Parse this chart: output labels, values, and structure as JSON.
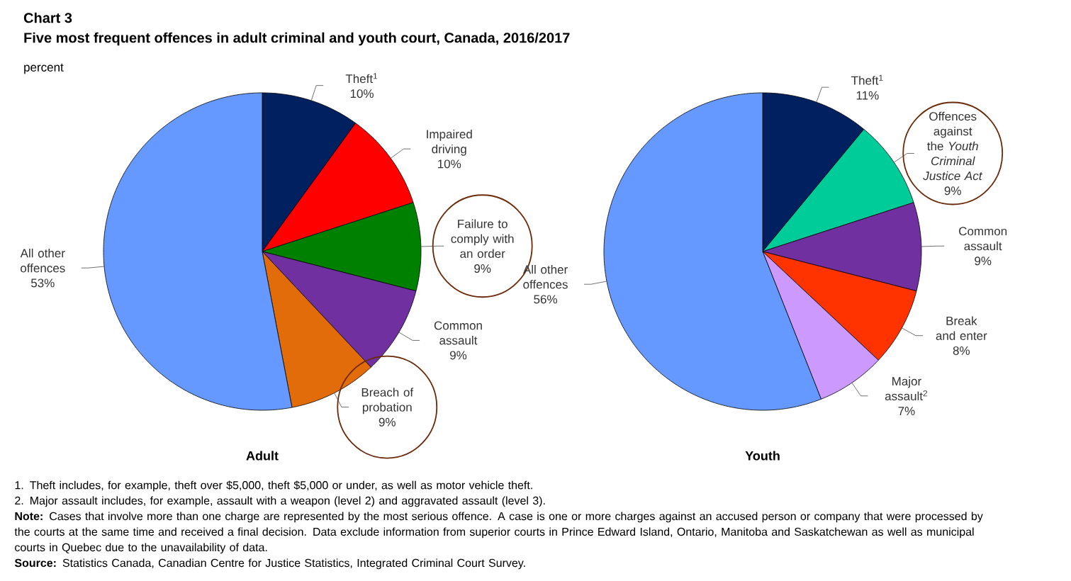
{
  "chart_data": [
    {
      "type": "pie",
      "title": "Chart 3",
      "subtitle": "Five most frequent offences in adult criminal and youth court, Canada, 2016/2017",
      "ylabel": "percent",
      "xlabel": "Adult",
      "categories": [
        "Theft$^{1}$",
        "Impaired driving",
        "Failure to comply with an order",
        "Common assault",
        "Breach of probation",
        "All other offences"
      ],
      "values": [
        10,
        10,
        9,
        9,
        9,
        53
      ],
      "value_labels": [
        "10%",
        "10%",
        "9%",
        "9%",
        "9%",
        "53%"
      ],
      "colors": [
        "#002060",
        "#ff0000",
        "#008000",
        "#7030a0",
        "#e36c0a",
        "#6699ff"
      ],
      "annotations": [
        "1. Theft includes, for example, theft over $5,000, theft $5,000 or under, as well as motor vehicle theft.",
        "2. Major assault includes, for example, assault with a weapon (level 2) and aggravated assault (level 3).",
        "**Note:** Cases that involve more than one charge are represented by the most serious offence. A case is one or more charges against an accused person or company that were processed by the courts at the same time and received a final decision. Data exclude information from superior courts in Prince Edward Island, Ontario, Manitoba and Saskatchewan as well as municipal courts in Quebec due to the unavailability of data.",
        "**Source:** Statistics Canada, Canadian Centre for Justice Statistics, Integrated Criminal Court Survey."
      ]
    },
    {
      "type": "pie",
      "xlabel": "Youth",
      "categories": [
        "Theft$^{1}$",
        "Offences against the *Youth Criminal Justice Act*",
        "Common assault",
        "Break and enter",
        "Major assault$^{2}$",
        "All other offences"
      ],
      "values": [
        11,
        9,
        9,
        8,
        7,
        56
      ],
      "value_labels": [
        "11%",
        "9%",
        "9%",
        "8%",
        "7%",
        "56%"
      ],
      "colors": [
        "#002060",
        "#00cc99",
        "#7030a0",
        "#ff3300",
        "#cc99ff",
        "#6699ff"
      ]
    }
  ]
}
